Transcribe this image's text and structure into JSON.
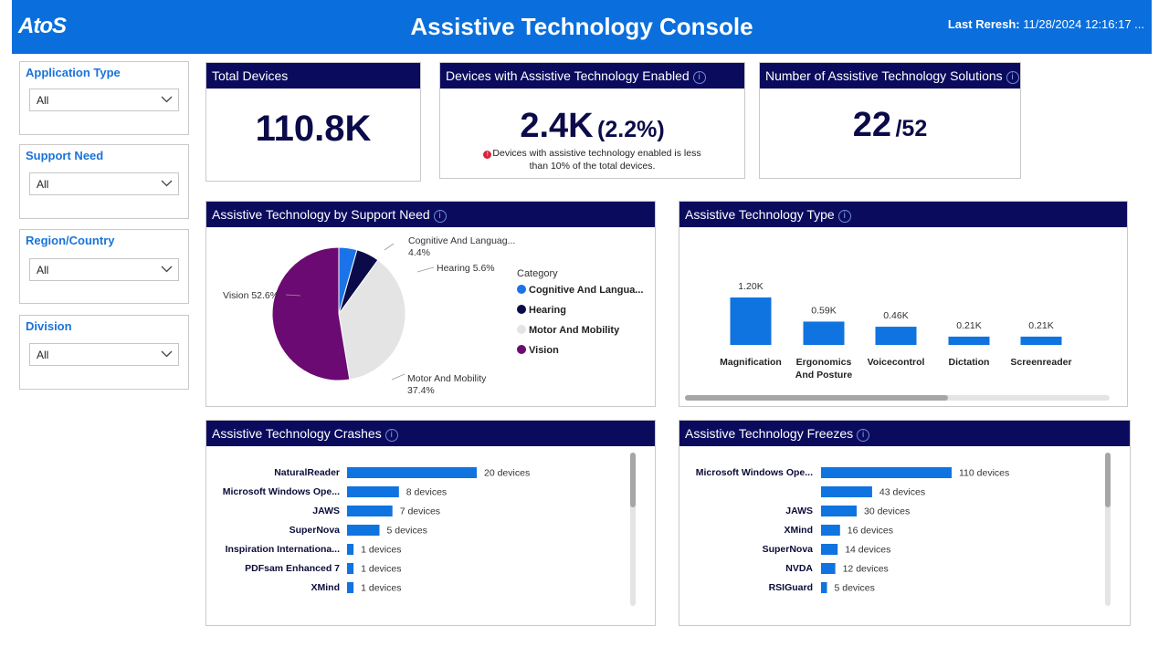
{
  "header": {
    "logo": "AtoS",
    "title": "Assistive Technology Console",
    "refresh_label": "Last Reresh:",
    "refresh_value": "11/28/2024 12:16:17 ..."
  },
  "filters": [
    {
      "label": "Application Type",
      "value": "All"
    },
    {
      "label": "Support Need",
      "value": "All"
    },
    {
      "label": "Region/Country",
      "value": "All"
    },
    {
      "label": "Division",
      "value": "All"
    }
  ],
  "kpis": {
    "total_devices": {
      "title": "Total Devices",
      "value": "110.8K"
    },
    "enabled": {
      "title": "Devices with Assistive Technology Enabled",
      "value": "2.4K",
      "percent": "(2.2%)",
      "warning_line1": "Devices with assistive technology enabled is less",
      "warning_line2": "than 10% of the total devices."
    },
    "solutions": {
      "title": "Number of Assistive Technology Solutions",
      "value": "22",
      "total": "/52"
    }
  },
  "support_need": {
    "title": "Assistive Technology by Support Need",
    "legend_title": "Category",
    "legend": [
      "Cognitive And Langua...",
      "Hearing",
      "Motor And Mobility",
      "Vision"
    ],
    "labels": {
      "cognitive_1": "Cognitive And Languag...",
      "cognitive_2": "4.4%",
      "hearing": "Hearing 5.6%",
      "vision": "Vision 52.6%",
      "motor_1": "Motor And Mobility",
      "motor_2": "37.4%"
    }
  },
  "type_chart": {
    "title": "Assistive Technology Type"
  },
  "crashes": {
    "title": "Assistive Technology Crashes"
  },
  "freezes": {
    "title": "Assistive Technology Freezes"
  },
  "colors": {
    "header": "#0a6fdc",
    "card_head": "#0b0b5e",
    "bar": "#0f73e0",
    "vision": "#6b0a73",
    "hearing": "#0b0b4a",
    "cognitive": "#1a73e8",
    "motor": "#e4e4e4"
  },
  "chart_data": [
    {
      "type": "pie",
      "title": "Assistive Technology by Support Need",
      "categories": [
        "Cognitive And Language",
        "Hearing",
        "Motor And Mobility",
        "Vision"
      ],
      "values": [
        4.4,
        5.6,
        37.4,
        52.6
      ]
    },
    {
      "type": "bar",
      "title": "Assistive Technology Type",
      "categories": [
        "Magnification",
        "Ergonomics And Posture",
        "Voicecontrol",
        "Dictation",
        "Screenreader"
      ],
      "category_lines": [
        [
          "Magnification"
        ],
        [
          "Ergonomics",
          "And Posture"
        ],
        [
          "Voicecontrol"
        ],
        [
          "Dictation"
        ],
        [
          "Screenreader"
        ]
      ],
      "values": [
        1.2,
        0.59,
        0.46,
        0.21,
        0.21
      ],
      "data_labels": [
        "1.20K",
        "0.59K",
        "0.46K",
        "0.21K",
        "0.21K"
      ]
    },
    {
      "type": "bar",
      "orientation": "horizontal",
      "title": "Assistive Technology Crashes",
      "categories": [
        "NaturalReader",
        "Microsoft Windows Ope...",
        "JAWS",
        "SuperNova",
        "Inspiration Internationa...",
        "PDFsam Enhanced 7",
        "XMind"
      ],
      "values": [
        20,
        8,
        7,
        5,
        1,
        1,
        1
      ],
      "data_labels": [
        "20 devices",
        "8 devices",
        "7 devices",
        "5 devices",
        "1 devices",
        "1 devices",
        "1 devices"
      ]
    },
    {
      "type": "bar",
      "orientation": "horizontal",
      "title": "Assistive Technology Freezes",
      "categories": [
        "Microsoft Windows Ope...",
        "",
        "JAWS",
        "XMind",
        "SuperNova",
        "NVDA",
        "RSIGuard"
      ],
      "values": [
        110,
        43,
        30,
        16,
        14,
        12,
        5
      ],
      "data_labels": [
        "110 devices",
        "43 devices",
        "30 devices",
        "16 devices",
        "14 devices",
        "12 devices",
        "5 devices"
      ]
    }
  ]
}
